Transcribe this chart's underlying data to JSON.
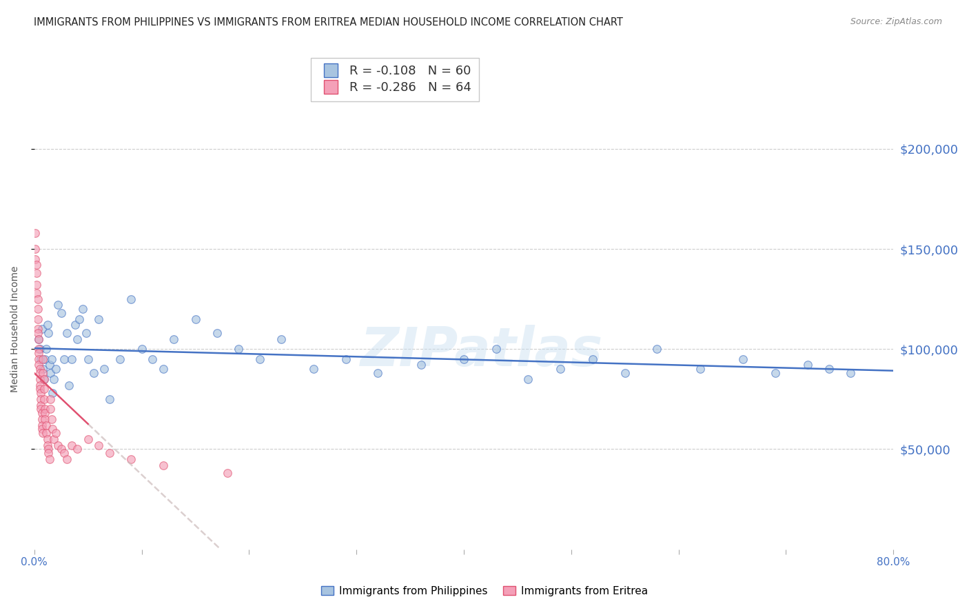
{
  "title": "IMMIGRANTS FROM PHILIPPINES VS IMMIGRANTS FROM ERITREA MEDIAN HOUSEHOLD INCOME CORRELATION CHART",
  "source": "Source: ZipAtlas.com",
  "ylabel": "Median Household Income",
  "ytick_labels": [
    "$50,000",
    "$100,000",
    "$150,000",
    "$200,000"
  ],
  "ytick_values": [
    50000,
    100000,
    150000,
    200000
  ],
  "ylim": [
    0,
    220000
  ],
  "xlim": [
    0.0,
    0.8
  ],
  "watermark": "ZIPatlas",
  "philippines_x": [
    0.004,
    0.005,
    0.006,
    0.007,
    0.008,
    0.009,
    0.01,
    0.011,
    0.012,
    0.013,
    0.014,
    0.015,
    0.016,
    0.017,
    0.018,
    0.02,
    0.022,
    0.025,
    0.028,
    0.03,
    0.032,
    0.035,
    0.038,
    0.04,
    0.042,
    0.045,
    0.048,
    0.05,
    0.055,
    0.06,
    0.065,
    0.07,
    0.08,
    0.09,
    0.1,
    0.11,
    0.12,
    0.13,
    0.15,
    0.17,
    0.19,
    0.21,
    0.23,
    0.26,
    0.29,
    0.32,
    0.36,
    0.4,
    0.43,
    0.46,
    0.49,
    0.52,
    0.55,
    0.58,
    0.62,
    0.66,
    0.69,
    0.72,
    0.74,
    0.76
  ],
  "philippines_y": [
    105000,
    100000,
    95000,
    110000,
    90000,
    85000,
    95000,
    100000,
    112000,
    108000,
    92000,
    88000,
    95000,
    78000,
    85000,
    90000,
    122000,
    118000,
    95000,
    108000,
    82000,
    95000,
    112000,
    105000,
    115000,
    120000,
    108000,
    95000,
    88000,
    115000,
    90000,
    75000,
    95000,
    125000,
    100000,
    95000,
    90000,
    105000,
    115000,
    108000,
    100000,
    95000,
    105000,
    90000,
    95000,
    88000,
    92000,
    95000,
    100000,
    85000,
    90000,
    95000,
    88000,
    100000,
    90000,
    95000,
    88000,
    92000,
    90000,
    88000
  ],
  "eritrea_x": [
    0.001,
    0.001,
    0.001,
    0.002,
    0.002,
    0.002,
    0.002,
    0.003,
    0.003,
    0.003,
    0.003,
    0.003,
    0.004,
    0.004,
    0.004,
    0.004,
    0.004,
    0.005,
    0.005,
    0.005,
    0.005,
    0.005,
    0.006,
    0.006,
    0.006,
    0.006,
    0.007,
    0.007,
    0.007,
    0.007,
    0.008,
    0.008,
    0.008,
    0.009,
    0.009,
    0.009,
    0.01,
    0.01,
    0.01,
    0.011,
    0.011,
    0.012,
    0.012,
    0.013,
    0.013,
    0.014,
    0.015,
    0.015,
    0.016,
    0.017,
    0.018,
    0.02,
    0.022,
    0.025,
    0.028,
    0.03,
    0.035,
    0.04,
    0.05,
    0.06,
    0.07,
    0.09,
    0.12,
    0.18
  ],
  "eritrea_y": [
    158000,
    150000,
    145000,
    142000,
    138000,
    132000,
    128000,
    125000,
    120000,
    115000,
    110000,
    108000,
    105000,
    100000,
    98000,
    95000,
    92000,
    90000,
    88000,
    85000,
    82000,
    80000,
    78000,
    75000,
    72000,
    70000,
    68000,
    65000,
    62000,
    60000,
    58000,
    95000,
    88000,
    85000,
    80000,
    75000,
    70000,
    68000,
    65000,
    62000,
    58000,
    55000,
    52000,
    50000,
    48000,
    45000,
    75000,
    70000,
    65000,
    60000,
    55000,
    58000,
    52000,
    50000,
    48000,
    45000,
    52000,
    50000,
    55000,
    52000,
    48000,
    45000,
    42000,
    38000
  ],
  "philippines_line_color": "#4472c4",
  "eritrea_line_color": "#e05070",
  "philippines_dot_color": "#a8c4e0",
  "eritrea_dot_color": "#f4a0b8",
  "background_color": "#ffffff",
  "grid_color": "#cccccc",
  "title_color": "#222222",
  "source_color": "#888888",
  "axis_label_color": "#555555",
  "right_tick_color": "#4472c4",
  "dot_size": 70,
  "dot_alpha": 0.65,
  "line_width": 1.8,
  "phil_R": "-0.108",
  "phil_N": "60",
  "erit_R": "-0.286",
  "erit_N": "64",
  "legend_label_phil": "Immigrants from Philippines",
  "legend_label_erit": "Immigrants from Eritrea"
}
